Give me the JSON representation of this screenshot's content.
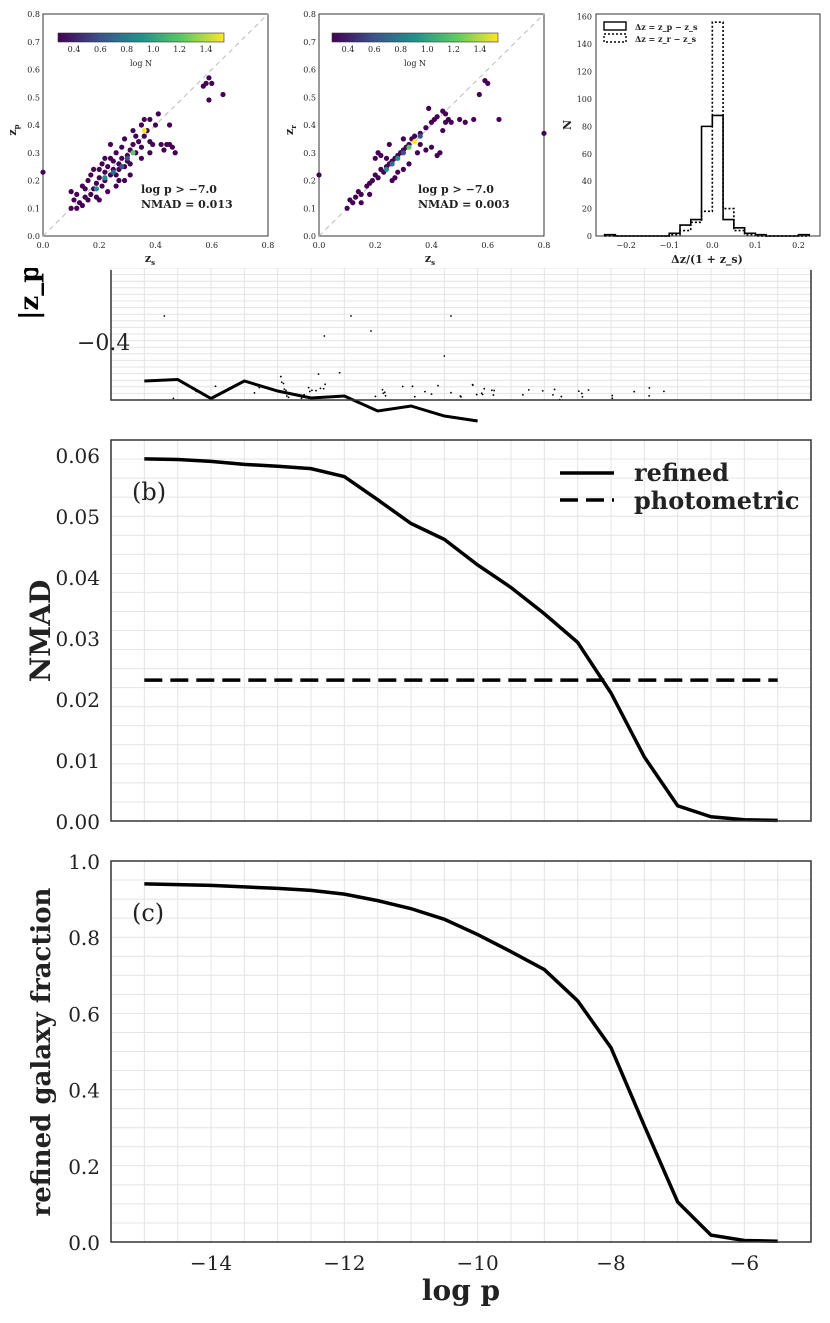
{
  "chart_data": [
    {
      "id": "inset-zp",
      "type": "scatter",
      "xlabel": "z",
      "xlabel_sub": "s",
      "ylabel": "z",
      "ylabel_sub": "p",
      "xlim": [
        0.0,
        0.8
      ],
      "ylim": [
        0.0,
        0.8
      ],
      "xticks": [
        "0.0",
        "0.2",
        "0.4",
        "0.6",
        "0.8"
      ],
      "yticks": [
        "0.0",
        "0.1",
        "0.2",
        "0.3",
        "0.4",
        "0.5",
        "0.6",
        "0.7",
        "0.8"
      ],
      "colorbar_label": "log N",
      "colorbar_ticks": [
        "0.4",
        "0.6",
        "0.8",
        "1.0",
        "1.2",
        "1.4"
      ],
      "annotation_line1": "log p > −7.0",
      "annotation_line2": "NMAD = 0.013",
      "points": [
        [
          0.0,
          0.23
        ],
        [
          0.1,
          0.1
        ],
        [
          0.1,
          0.16
        ],
        [
          0.11,
          0.13
        ],
        [
          0.12,
          0.1
        ],
        [
          0.12,
          0.15
        ],
        [
          0.13,
          0.12
        ],
        [
          0.14,
          0.18
        ],
        [
          0.15,
          0.14
        ],
        [
          0.15,
          0.17
        ],
        [
          0.16,
          0.13
        ],
        [
          0.16,
          0.2
        ],
        [
          0.17,
          0.15
        ],
        [
          0.17,
          0.22
        ],
        [
          0.18,
          0.17
        ],
        [
          0.18,
          0.24
        ],
        [
          0.19,
          0.19
        ],
        [
          0.19,
          0.14
        ],
        [
          0.2,
          0.21
        ],
        [
          0.2,
          0.24
        ],
        [
          0.21,
          0.18
        ],
        [
          0.21,
          0.26
        ],
        [
          0.22,
          0.2
        ],
        [
          0.22,
          0.23
        ],
        [
          0.23,
          0.25
        ],
        [
          0.23,
          0.16
        ],
        [
          0.24,
          0.22
        ],
        [
          0.24,
          0.28
        ],
        [
          0.25,
          0.24
        ],
        [
          0.25,
          0.27
        ],
        [
          0.26,
          0.22
        ],
        [
          0.26,
          0.3
        ],
        [
          0.27,
          0.26
        ],
        [
          0.27,
          0.24
        ],
        [
          0.28,
          0.28
        ],
        [
          0.28,
          0.32
        ],
        [
          0.29,
          0.25
        ],
        [
          0.29,
          0.35
        ],
        [
          0.3,
          0.29
        ],
        [
          0.3,
          0.27
        ],
        [
          0.31,
          0.31
        ],
        [
          0.31,
          0.26
        ],
        [
          0.32,
          0.33
        ],
        [
          0.32,
          0.38
        ],
        [
          0.33,
          0.3
        ],
        [
          0.33,
          0.36
        ],
        [
          0.34,
          0.34
        ],
        [
          0.35,
          0.32
        ],
        [
          0.35,
          0.4
        ],
        [
          0.36,
          0.36
        ],
        [
          0.37,
          0.38
        ],
        [
          0.38,
          0.34
        ],
        [
          0.38,
          0.42
        ],
        [
          0.39,
          0.33
        ],
        [
          0.4,
          0.4
        ],
        [
          0.41,
          0.44
        ],
        [
          0.42,
          0.33
        ],
        [
          0.43,
          0.31
        ],
        [
          0.44,
          0.33
        ],
        [
          0.45,
          0.33
        ],
        [
          0.46,
          0.32
        ],
        [
          0.47,
          0.3
        ],
        [
          0.38,
          0.3
        ],
        [
          0.29,
          0.2
        ],
        [
          0.26,
          0.18
        ],
        [
          0.22,
          0.28
        ],
        [
          0.24,
          0.33
        ],
        [
          0.45,
          0.4
        ],
        [
          0.35,
          0.28
        ],
        [
          0.31,
          0.22
        ],
        [
          0.58,
          0.55
        ],
        [
          0.59,
          0.57
        ],
        [
          0.57,
          0.54
        ],
        [
          0.6,
          0.55
        ],
        [
          0.64,
          0.51
        ],
        [
          0.59,
          0.49
        ],
        [
          0.27,
          0.2
        ],
        [
          0.2,
          0.13
        ],
        [
          0.14,
          0.11
        ],
        [
          0.36,
          0.42
        ]
      ],
      "highlight_points": [
        [
          0.22,
          0.21
        ],
        [
          0.28,
          0.25
        ],
        [
          0.32,
          0.3
        ],
        [
          0.25,
          0.23
        ],
        [
          0.36,
          0.38
        ],
        [
          0.19,
          0.17
        ],
        [
          0.3,
          0.28
        ]
      ]
    },
    {
      "id": "inset-zr",
      "type": "scatter",
      "xlabel": "z",
      "xlabel_sub": "s",
      "ylabel": "z",
      "ylabel_sub": "r",
      "xlim": [
        0.0,
        0.8
      ],
      "ylim": [
        0.0,
        0.8
      ],
      "xticks": [
        "0.0",
        "0.2",
        "0.4",
        "0.6",
        "0.8"
      ],
      "yticks": [
        "0.0",
        "0.1",
        "0.2",
        "0.3",
        "0.4",
        "0.5",
        "0.6",
        "0.7",
        "0.8"
      ],
      "colorbar_label": "log N",
      "colorbar_ticks": [
        "0.4",
        "0.6",
        "0.8",
        "1.0",
        "1.2",
        "1.4"
      ],
      "annotation_line1": "log p > −7.0",
      "annotation_line2": "NMAD = 0.003",
      "points": [
        [
          0.0,
          0.22
        ],
        [
          0.1,
          0.1
        ],
        [
          0.11,
          0.13
        ],
        [
          0.12,
          0.12
        ],
        [
          0.13,
          0.14
        ],
        [
          0.14,
          0.16
        ],
        [
          0.15,
          0.15
        ],
        [
          0.17,
          0.18
        ],
        [
          0.18,
          0.19
        ],
        [
          0.19,
          0.2
        ],
        [
          0.2,
          0.22
        ],
        [
          0.21,
          0.21
        ],
        [
          0.22,
          0.24
        ],
        [
          0.23,
          0.23
        ],
        [
          0.24,
          0.25
        ],
        [
          0.25,
          0.26
        ],
        [
          0.26,
          0.27
        ],
        [
          0.27,
          0.28
        ],
        [
          0.28,
          0.29
        ],
        [
          0.29,
          0.3
        ],
        [
          0.3,
          0.31
        ],
        [
          0.31,
          0.32
        ],
        [
          0.32,
          0.33
        ],
        [
          0.33,
          0.35
        ],
        [
          0.34,
          0.36
        ],
        [
          0.36,
          0.37
        ],
        [
          0.38,
          0.39
        ],
        [
          0.4,
          0.41
        ],
        [
          0.41,
          0.42
        ],
        [
          0.42,
          0.43
        ],
        [
          0.44,
          0.45
        ],
        [
          0.45,
          0.44
        ],
        [
          0.2,
          0.28
        ],
        [
          0.22,
          0.29
        ],
        [
          0.24,
          0.28
        ],
        [
          0.21,
          0.3
        ],
        [
          0.26,
          0.2
        ],
        [
          0.3,
          0.24
        ],
        [
          0.32,
          0.26
        ],
        [
          0.28,
          0.23
        ],
        [
          0.35,
          0.3
        ],
        [
          0.38,
          0.31
        ],
        [
          0.4,
          0.32
        ],
        [
          0.42,
          0.29
        ],
        [
          0.43,
          0.3
        ],
        [
          0.44,
          0.38
        ],
        [
          0.45,
          0.41
        ],
        [
          0.46,
          0.42
        ],
        [
          0.47,
          0.41
        ],
        [
          0.5,
          0.42
        ],
        [
          0.52,
          0.41
        ],
        [
          0.55,
          0.42
        ],
        [
          0.57,
          0.51
        ],
        [
          0.59,
          0.56
        ],
        [
          0.6,
          0.55
        ],
        [
          0.64,
          0.42
        ],
        [
          0.8,
          0.37
        ],
        [
          0.39,
          0.46
        ],
        [
          0.36,
          0.33
        ],
        [
          0.3,
          0.35
        ],
        [
          0.25,
          0.33
        ],
        [
          0.27,
          0.21
        ],
        [
          0.18,
          0.15
        ],
        [
          0.15,
          0.12
        ]
      ],
      "highlight_points": [
        [
          0.28,
          0.28
        ],
        [
          0.3,
          0.3
        ],
        [
          0.32,
          0.32
        ],
        [
          0.26,
          0.26
        ],
        [
          0.34,
          0.34
        ],
        [
          0.24,
          0.24
        ],
        [
          0.36,
          0.36
        ]
      ]
    },
    {
      "id": "inset-hist",
      "type": "histogram",
      "xlabel": "Δz/(1 + z_s)",
      "ylabel": "N",
      "xlim": [
        -0.27,
        0.25
      ],
      "ylim": [
        0,
        162
      ],
      "xticks": [
        "−0.2",
        "−0.1",
        "0.0",
        "0.1",
        "0.2"
      ],
      "yticks": [
        "0",
        "20",
        "40",
        "60",
        "80",
        "100",
        "120",
        "140",
        "160"
      ],
      "legend": [
        "Δz = z_p − z_s",
        "Δz = z_r − z_s"
      ],
      "bin_edges": [
        -0.25,
        -0.225,
        -0.2,
        -0.175,
        -0.15,
        -0.125,
        -0.1,
        -0.075,
        -0.05,
        -0.025,
        0.0,
        0.025,
        0.05,
        0.075,
        0.1,
        0.125,
        0.15,
        0.175,
        0.2,
        0.225
      ],
      "counts_photometric": [
        1,
        0,
        0,
        0,
        0,
        0,
        2,
        8,
        12,
        80,
        88,
        12,
        6,
        2,
        1,
        0,
        0,
        0,
        1
      ],
      "counts_refined": [
        0,
        0,
        0,
        0,
        0,
        0,
        1,
        4,
        10,
        18,
        156,
        20,
        4,
        1,
        0,
        0,
        0,
        0,
        0
      ]
    },
    {
      "id": "panel-a",
      "type": "scatter",
      "ylabel": "|z_p",
      "ytick_visible": "−0.4",
      "xlim": [
        -15.5,
        -5
      ],
      "line_x": [
        -15.0,
        -14.5,
        -14.0,
        -13.5,
        -13.0,
        -12.5,
        -12.0,
        -11.5,
        -11.0,
        -10.5,
        -10.0
      ],
      "line_y": [
        -0.33,
        -0.333,
        -0.295,
        -0.33,
        -0.31,
        -0.296,
        -0.3,
        -0.27,
        -0.28,
        -0.26,
        -0.25
      ]
    },
    {
      "id": "panel-b",
      "type": "line",
      "label": "(b)",
      "ylabel": "NMAD",
      "xlim": [
        -15.5,
        -5
      ],
      "ylim": [
        0.0,
        0.0625
      ],
      "yticks": [
        "0.00",
        "0.01",
        "0.02",
        "0.03",
        "0.04",
        "0.05",
        "0.06"
      ],
      "series": [
        {
          "name": "refined",
          "style": "solid",
          "x": [
            -15.0,
            -14.5,
            -14.0,
            -13.5,
            -13.0,
            -12.5,
            -12.0,
            -11.5,
            -11.0,
            -10.5,
            -10.0,
            -9.5,
            -9.0,
            -8.5,
            -8.0,
            -7.5,
            -7.0,
            -6.5,
            -6.0,
            -5.5
          ],
          "y": [
            0.0594,
            0.0593,
            0.059,
            0.0585,
            0.0582,
            0.0578,
            0.0565,
            0.0527,
            0.0488,
            0.0462,
            0.042,
            0.0383,
            0.034,
            0.0293,
            0.021,
            0.0105,
            0.0025,
            0.0007,
            0.0002,
            0.0001
          ]
        },
        {
          "name": "photometric",
          "style": "dashed",
          "x": [
            -15.0,
            -5.5
          ],
          "y": [
            0.0231,
            0.0231
          ]
        }
      ]
    },
    {
      "id": "panel-c",
      "type": "line",
      "label": "(c)",
      "ylabel": "refined galaxy fraction",
      "xlabel": "log p",
      "xlim": [
        -15.5,
        -5
      ],
      "ylim": [
        0.0,
        1.0
      ],
      "yticks": [
        "0.0",
        "0.2",
        "0.4",
        "0.6",
        "0.8",
        "1.0"
      ],
      "xticks": [
        "−14",
        "−12",
        "−10",
        "−8",
        "−6"
      ],
      "series": [
        {
          "name": "refined",
          "style": "solid",
          "x": [
            -15.0,
            -14.5,
            -14.0,
            -13.5,
            -13.0,
            -12.5,
            -12.0,
            -11.5,
            -11.0,
            -10.5,
            -10.0,
            -9.5,
            -9.0,
            -8.5,
            -8.0,
            -7.5,
            -7.0,
            -6.5,
            -6.0,
            -5.5
          ],
          "y": [
            0.94,
            0.938,
            0.936,
            0.932,
            0.928,
            0.923,
            0.913,
            0.896,
            0.875,
            0.847,
            0.807,
            0.762,
            0.715,
            0.633,
            0.51,
            0.305,
            0.105,
            0.018,
            0.004,
            0.002
          ]
        }
      ]
    }
  ]
}
